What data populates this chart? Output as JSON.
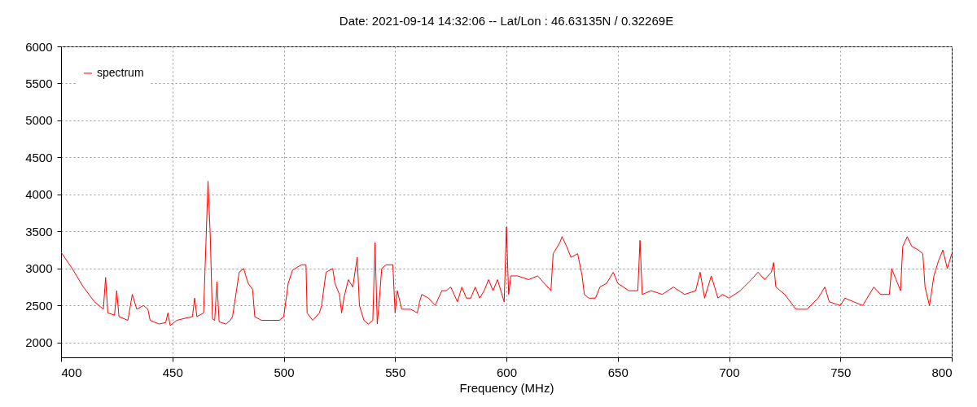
{
  "chart_data": {
    "type": "line",
    "title": "Date: 2021-09-14 14:32:06  --  Lat/Lon : 46.63135N / 0.32269E",
    "xlabel": "Frequency (MHz)",
    "xlim": [
      400,
      800
    ],
    "xticks": [
      400,
      450,
      500,
      550,
      600,
      650,
      700,
      750,
      800
    ],
    "ylim": [
      1800,
      6000
    ],
    "yticks": [
      2000,
      2500,
      3000,
      3500,
      4000,
      4500,
      5000,
      5500,
      6000
    ],
    "grid": true,
    "legend": "top left",
    "marker": "none",
    "line_style": "solid",
    "x": [
      400,
      405,
      410,
      415,
      419,
      420,
      421,
      424,
      425,
      426,
      430,
      432,
      434,
      437,
      439,
      440,
      444,
      447,
      448,
      449,
      452,
      456,
      459,
      460,
      461,
      464,
      466,
      467,
      468,
      469,
      470,
      471,
      474,
      476,
      477,
      478,
      480,
      482,
      484,
      486,
      487,
      490,
      494,
      498,
      500,
      502,
      504,
      508,
      510,
      510.5,
      513,
      516,
      517,
      519,
      522,
      523,
      525,
      526,
      527,
      529,
      531,
      533,
      534,
      536,
      538,
      540,
      541,
      542,
      543,
      544,
      546,
      549,
      550,
      551,
      553,
      557,
      560,
      561,
      562,
      565,
      568,
      571,
      573,
      575,
      578,
      580,
      582,
      584,
      586,
      588,
      590,
      592,
      594,
      596,
      599,
      600,
      601,
      602,
      605,
      610,
      614,
      617,
      620,
      621,
      624,
      625,
      627,
      629,
      632,
      634,
      635,
      637,
      640,
      642,
      645,
      647,
      648,
      650,
      655,
      659,
      660,
      661,
      665,
      670,
      675,
      680,
      685,
      687,
      689,
      692,
      695,
      697,
      700,
      705,
      710,
      713,
      716,
      719,
      720,
      721,
      725,
      730,
      735,
      740,
      743,
      745,
      750,
      752,
      756,
      760,
      765,
      768,
      772,
      773,
      775,
      777,
      778,
      780,
      782,
      785,
      787,
      788,
      790,
      792,
      794,
      796,
      798,
      800
    ],
    "series": [
      {
        "name": "spectrum",
        "color": "#ff0000",
        "values": [
          3220,
          3000,
          2750,
          2550,
          2450,
          2880,
          2400,
          2370,
          2700,
          2350,
          2300,
          2650,
          2450,
          2500,
          2450,
          2300,
          2250,
          2270,
          2400,
          2230,
          2300,
          2330,
          2350,
          2600,
          2350,
          2400,
          4180,
          3450,
          2320,
          2300,
          2820,
          2280,
          2250,
          2300,
          2350,
          2550,
          2950,
          3000,
          2800,
          2720,
          2350,
          2300,
          2300,
          2300,
          2350,
          2800,
          2980,
          3050,
          3050,
          2400,
          2300,
          2400,
          2500,
          2950,
          3000,
          2800,
          2650,
          2400,
          2600,
          2850,
          2750,
          3150,
          2500,
          2300,
          2250,
          2300,
          3350,
          2250,
          2600,
          3000,
          3050,
          3050,
          2400,
          2700,
          2450,
          2450,
          2400,
          2550,
          2650,
          2600,
          2500,
          2700,
          2700,
          2750,
          2550,
          2750,
          2600,
          2600,
          2750,
          2600,
          2700,
          2850,
          2700,
          2850,
          2550,
          3560,
          2650,
          2900,
          2900,
          2850,
          2900,
          2800,
          2700,
          3200,
          3350,
          3430,
          3300,
          3150,
          3200,
          2900,
          2650,
          2600,
          2600,
          2750,
          2800,
          2900,
          2950,
          2800,
          2700,
          2700,
          3380,
          2650,
          2700,
          2650,
          2750,
          2650,
          2700,
          2950,
          2600,
          2900,
          2600,
          2650,
          2600,
          2700,
          2850,
          2950,
          2850,
          2950,
          3080,
          2750,
          2650,
          2450,
          2450,
          2600,
          2750,
          2550,
          2500,
          2600,
          2550,
          2500,
          2750,
          2650,
          2650,
          3000,
          2850,
          2700,
          3300,
          3430,
          3300,
          3250,
          3200,
          2750,
          2500,
          2900,
          3100,
          3250,
          3000,
          3200
        ]
      }
    ]
  }
}
